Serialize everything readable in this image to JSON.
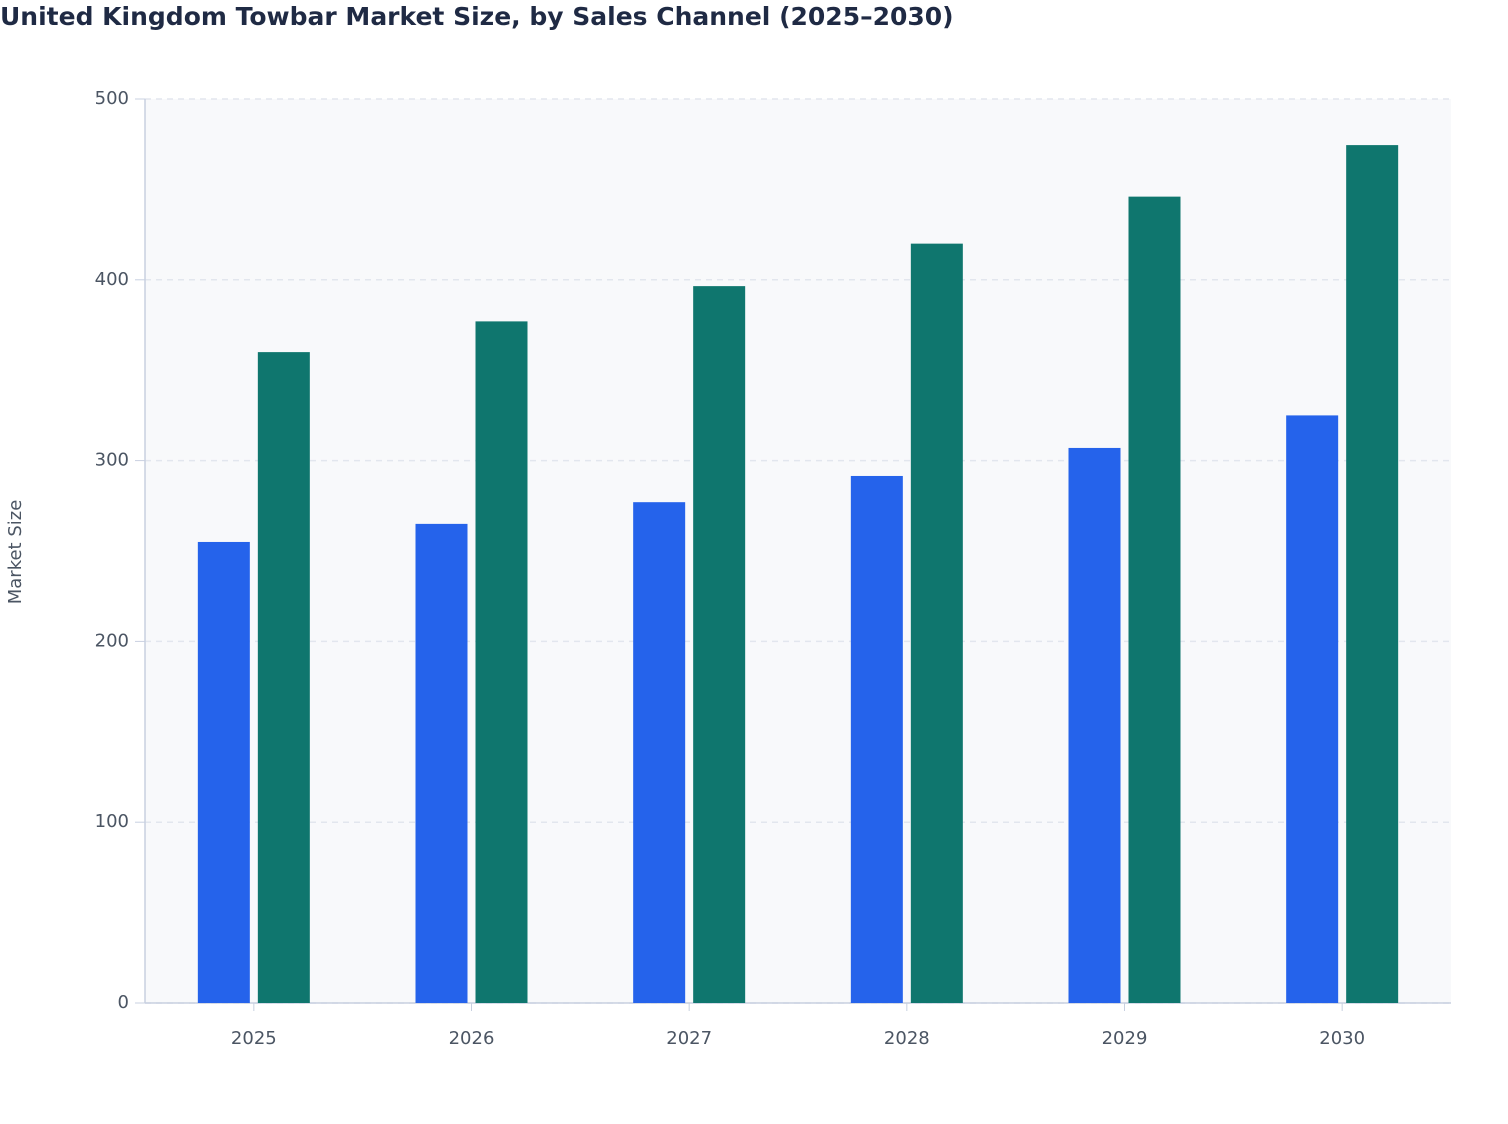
{
  "chart_data": {
    "type": "bar",
    "title": "United Kingdom Towbar Market Size, by Sales Channel (2025–2030)",
    "y_label": "Market Size",
    "categories": [
      "2025",
      "2026",
      "2027",
      "2028",
      "2029",
      "2030"
    ],
    "series": [
      {
        "color": "#2563eb",
        "values": [
          255,
          265,
          277,
          291.5,
          307,
          325
        ]
      },
      {
        "color": "#0f766e",
        "values": [
          360,
          377,
          396.5,
          420,
          446,
          474.5
        ]
      }
    ],
    "ylim": [
      0,
      500
    ],
    "yticks": [
      0,
      100,
      200,
      300,
      400,
      500
    ],
    "grid": true
  }
}
